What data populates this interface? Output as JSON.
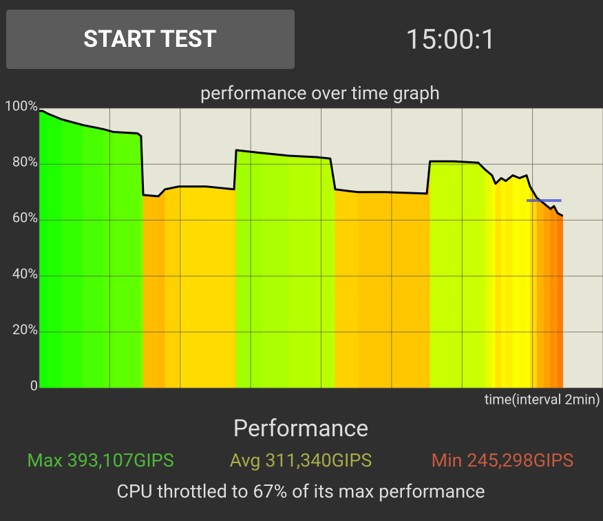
{
  "button": {
    "label": "START TEST"
  },
  "timer": "15:00:1",
  "chart_data": {
    "type": "line",
    "title": "performance over time graph",
    "x_label": "time(interval 2min)",
    "x": [
      0,
      0.1,
      0.25,
      0.64,
      1.23,
      1.82,
      2.11,
      2.79,
      2.89,
      2.95,
      3.38,
      3.57,
      3.96,
      4.75,
      5.53,
      5.59,
      6.31,
      7.09,
      7.87,
      8.26,
      8.4,
      9.04,
      9.82,
      11.0,
      11.09,
      11.78,
      12.46,
      12.66,
      12.85,
      12.95,
      13.11,
      13.24,
      13.44,
      13.63,
      13.83,
      13.93,
      14.12,
      14.32,
      14.51,
      14.61,
      14.71,
      14.86
    ],
    "series": [
      {
        "color": "#000000",
        "values": [
          99,
          99,
          98,
          96,
          94,
          92.5,
          91.5,
          91,
          90,
          69,
          68.5,
          71,
          72,
          72,
          71,
          85,
          84,
          83,
          82.5,
          82,
          71,
          70,
          70,
          69.5,
          81,
          81,
          80.5,
          78,
          76,
          73,
          75,
          74,
          76,
          75,
          76,
          72,
          68,
          66,
          64,
          65,
          62.5,
          61.5
        ]
      }
    ],
    "threshold": {
      "value": 67,
      "x": [
        13.83,
        14.82
      ],
      "color": "#3a4fd8"
    },
    "xlim": [
      0,
      16
    ],
    "xticks": [
      0,
      2,
      4,
      6,
      8,
      10,
      12,
      14,
      16
    ],
    "ylim": [
      0,
      100
    ],
    "yticks": [
      0,
      {
        "value": 20,
        "label": "20%"
      },
      {
        "value": 40,
        "label": "40%"
      },
      {
        "value": 60,
        "label": "60%"
      },
      {
        "value": 80,
        "label": "80%"
      },
      {
        "value": 100,
        "label": "100%"
      }
    ],
    "grid": true
  },
  "stats": {
    "title": "Performance",
    "max": "Max 393,107GIPS",
    "avg": "Avg 311,340GIPS",
    "min": "Min 245,298GIPS",
    "summary": "CPU throttled to 67% of its max performance"
  }
}
